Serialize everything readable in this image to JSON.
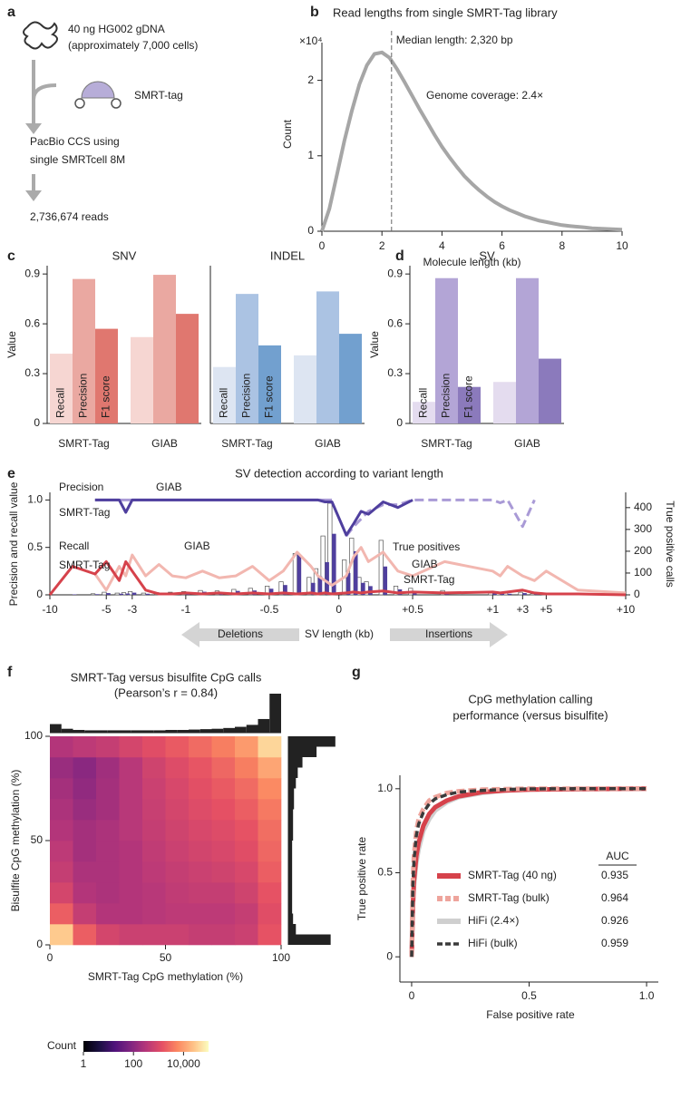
{
  "diagram": {
    "label": "a",
    "input": [
      "40 ng HG002 gDNA",
      "(approximately 7,000 cells)"
    ],
    "reagent": "SMRT-tag",
    "sequencing": [
      "PacBio CCS using",
      "single SMRTcell 8M"
    ],
    "output": "2,736,674 reads"
  },
  "chart_data": [
    {
      "type": "line",
      "label": "b",
      "title": "Read lengths from single SMRT-Tag library",
      "xlabel": "Molecule length (kb)",
      "ylabel": "Count",
      "y_multiplier": "×10⁴",
      "x": [
        0,
        0.25,
        0.5,
        0.75,
        1,
        1.25,
        1.5,
        1.75,
        2,
        2.25,
        2.5,
        2.75,
        3,
        3.25,
        3.5,
        3.75,
        4,
        4.25,
        4.5,
        4.75,
        5,
        5.25,
        5.5,
        5.75,
        6,
        6.25,
        6.5,
        6.75,
        7,
        7.25,
        7.5,
        7.75,
        8,
        8.25,
        8.5,
        8.75,
        9,
        9.25,
        9.5,
        9.75,
        10
      ],
      "values": [
        0,
        0.3,
        0.75,
        1.2,
        1.6,
        1.95,
        2.2,
        2.35,
        2.37,
        2.3,
        2.15,
        1.98,
        1.8,
        1.62,
        1.45,
        1.28,
        1.12,
        0.98,
        0.85,
        0.73,
        0.63,
        0.54,
        0.46,
        0.39,
        0.33,
        0.28,
        0.24,
        0.2,
        0.17,
        0.14,
        0.12,
        0.1,
        0.08,
        0.07,
        0.06,
        0.05,
        0.04,
        0.035,
        0.03,
        0.025,
        0.02
      ],
      "color": "#a6a6a6",
      "xlim": [
        0,
        10
      ],
      "ylim": [
        0,
        2.5
      ],
      "xticks": [
        0,
        2,
        4,
        6,
        8,
        10
      ],
      "yticks": [
        0,
        1,
        2
      ],
      "median": 2.32,
      "annotations": [
        "Median length: 2,320 bp",
        "Genome coverage: 2.4×"
      ]
    },
    {
      "type": "bar",
      "label": "c",
      "title": "SNV",
      "ylabel": "Value",
      "categories": [
        "SMRT-Tag",
        "GIAB"
      ],
      "series": [
        {
          "name": "Recall",
          "color": "#f6d6d2",
          "values": [
            0.42,
            0.52
          ]
        },
        {
          "name": "Precision",
          "color": "#eaa8a1",
          "values": [
            0.87,
            0.895
          ]
        },
        {
          "name": "F1 score",
          "color": "#e0776f",
          "values": [
            0.57,
            0.66
          ]
        }
      ],
      "ylim": [
        0,
        0.95
      ],
      "yticks": [
        0,
        0.3,
        0.6,
        0.9
      ]
    },
    {
      "type": "bar",
      "title": "INDEL",
      "categories": [
        "SMRT-Tag",
        "GIAB"
      ],
      "series": [
        {
          "name": "Recall",
          "color": "#dde5f2",
          "values": [
            0.34,
            0.41
          ]
        },
        {
          "name": "Precision",
          "color": "#abc3e3",
          "values": [
            0.78,
            0.795
          ]
        },
        {
          "name": "F1 score",
          "color": "#72a0cf",
          "values": [
            0.47,
            0.54
          ]
        }
      ],
      "ylim": [
        0,
        0.95
      ]
    },
    {
      "type": "bar",
      "label": "d",
      "title": "SV",
      "ylabel": "Value",
      "categories": [
        "SMRT-Tag",
        "GIAB"
      ],
      "series": [
        {
          "name": "Recall",
          "color": "#e4dcef",
          "values": [
            0.13,
            0.25
          ]
        },
        {
          "name": "Precision",
          "color": "#b3a5d6",
          "values": [
            0.875,
            0.875
          ]
        },
        {
          "name": "F1 score",
          "color": "#8b7abc",
          "values": [
            0.22,
            0.39
          ]
        }
      ],
      "ylim": [
        0,
        0.95
      ],
      "yticks": [
        0,
        0.3,
        0.6,
        0.9
      ]
    },
    {
      "type": "combo",
      "label": "e",
      "title": "SV detection according to variant length",
      "xlabel": "SV length (kb)",
      "ylabel": "Precision and recall value",
      "y2label": "True positive calls",
      "deletions_label": "Deletions",
      "insertions_label": "Insertions",
      "x": [
        -10,
        -8,
        -6,
        -5,
        -4,
        -3.5,
        -3,
        -2.5,
        -2,
        -1.5,
        -1,
        -0.9,
        -0.8,
        -0.7,
        -0.6,
        -0.5,
        -0.4,
        -0.3,
        -0.2,
        -0.15,
        -0.1,
        -0.05,
        0.05,
        0.1,
        0.15,
        0.2,
        0.3,
        0.4,
        0.5,
        0.7,
        1,
        1.5,
        2,
        3,
        4,
        5,
        7,
        10
      ],
      "xlim": [
        -10,
        10
      ],
      "xticks": [
        -10,
        -5,
        -3,
        -1,
        -0.5,
        0,
        {
          "value": 0.5,
          "label": "+0.5"
        },
        {
          "value": 1,
          "label": "+1"
        },
        {
          "value": 3,
          "label": "+3"
        },
        {
          "value": 5,
          "label": "+5"
        },
        {
          "value": 10,
          "label": "+10"
        }
      ],
      "ylim": [
        0,
        1.08
      ],
      "yticks": [
        0,
        0.5,
        {
          "value": 1,
          "label": "1.0"
        }
      ],
      "y2lim": [
        0,
        470
      ],
      "y2ticks": [
        0,
        100,
        200,
        300,
        400
      ],
      "precision": {
        "label": "Precision",
        "series": [
          {
            "name": "GIAB",
            "color": "#a99ad6",
            "dashed_insertions": true,
            "values": [
              null,
              null,
              1,
              1,
              1,
              1,
              1,
              1,
              1,
              1,
              1,
              1,
              1,
              1,
              1,
              1,
              1,
              1,
              1,
              1,
              1,
              1,
              0.62,
              0.72,
              0.8,
              0.88,
              0.95,
              0.95,
              1,
              1,
              1,
              0.97,
              1,
              0.72,
              1,
              null,
              null,
              null
            ]
          },
          {
            "name": "SMRT-Tag",
            "color": "#4f3f9e",
            "values": [
              null,
              null,
              1,
              1,
              1,
              0.87,
              1,
              1,
              1,
              1,
              1,
              1,
              1,
              1,
              1,
              1,
              1,
              1,
              1,
              1,
              0.98,
              0.98,
              0.63,
              0.75,
              0.88,
              0.85,
              0.98,
              0.92,
              1,
              null,
              null,
              null,
              null,
              null,
              null,
              null,
              null,
              null
            ]
          }
        ]
      },
      "recall": {
        "label": "Recall",
        "series": [
          {
            "name": "GIAB",
            "color": "#f2b7b0",
            "values": [
              null,
              null,
              0.22,
              0.05,
              0.3,
              0.2,
              0.42,
              0.2,
              0.32,
              0.2,
              0.18,
              0.25,
              0.18,
              0.2,
              0.3,
              0.15,
              0.25,
              0.45,
              0.3,
              0.2,
              0.15,
              0.1,
              0.2,
              0.4,
              0.5,
              0.35,
              0.45,
              0.25,
              0.2,
              0.35,
              0.25,
              0.2,
              0.3,
              0.2,
              0.15,
              0.25,
              0.05,
              0.02
            ]
          },
          {
            "name": "SMRT-Tag",
            "color": "#d6424b",
            "values": [
              0,
              0.3,
              0.22,
              0.35,
              0.15,
              0.35,
              0.25,
              0.05,
              0.01,
              0.01,
              0.02,
              0.01,
              0.02,
              0.01,
              0.02,
              0.01,
              0.02,
              0.01,
              0.02,
              0.01,
              0.02,
              0.01,
              0.02,
              0.03,
              0.02,
              0.03,
              0.04,
              0.02,
              0.03,
              0.02,
              0.03,
              0.02,
              0.03,
              0.05,
              0.02,
              0.01,
              0.01,
              0
            ]
          }
        ]
      },
      "true_positives": {
        "label": "True positives",
        "series": [
          {
            "name": "GIAB",
            "color": "#ffffff",
            "axis": "y2",
            "values": [
              0,
              0,
              5,
              12,
              8,
              10,
              15,
              8,
              10,
              12,
              15,
              20,
              18,
              25,
              30,
              40,
              60,
              190,
              80,
              120,
              270,
              420,
              160,
              260,
              80,
              60,
              250,
              40,
              30,
              20,
              15,
              10,
              8,
              12,
              5,
              3,
              2,
              0
            ]
          },
          {
            "name": "SMRT-Tag",
            "color": "#4f3f9e",
            "axis": "y2",
            "values": [
              0,
              2,
              3,
              8,
              5,
              6,
              10,
              5,
              6,
              8,
              10,
              14,
              12,
              18,
              20,
              28,
              45,
              185,
              55,
              85,
              150,
              280,
              100,
              200,
              55,
              40,
              130,
              25,
              18,
              12,
              10,
              6,
              5,
              8,
              3,
              2,
              1,
              0
            ]
          }
        ]
      }
    },
    {
      "type": "heatmap",
      "label": "f",
      "title": "SMRT-Tag versus bisulfite CpG calls",
      "subtitle": "(Pearson’s r = 0.84)",
      "xlabel": "SMRT-Tag CpG methylation (%)",
      "ylabel": "Bisulfite CpG methylation (%)",
      "xlim": [
        0,
        100
      ],
      "ylim": [
        0,
        100
      ],
      "xticks": [
        0,
        50,
        100
      ],
      "yticks": [
        0,
        50,
        100
      ],
      "bins": [
        0,
        10,
        20,
        30,
        40,
        50,
        60,
        70,
        80,
        90,
        100
      ],
      "counts": [
        [
          30000,
          2000,
          800,
          600,
          600,
          600,
          500,
          500,
          600,
          1500
        ],
        [
          2000,
          500,
          300,
          300,
          350,
          400,
          400,
          400,
          500,
          1200
        ],
        [
          800,
          300,
          250,
          300,
          350,
          450,
          500,
          500,
          700,
          1500
        ],
        [
          500,
          250,
          250,
          300,
          400,
          500,
          600,
          700,
          900,
          2000
        ],
        [
          400,
          200,
          250,
          300,
          450,
          600,
          750,
          900,
          1200,
          2500
        ],
        [
          300,
          200,
          250,
          350,
          500,
          700,
          900,
          1100,
          1500,
          3000
        ],
        [
          250,
          150,
          200,
          350,
          550,
          800,
          1100,
          1400,
          2000,
          4000
        ],
        [
          200,
          120,
          200,
          350,
          600,
          900,
          1300,
          1800,
          2800,
          6000
        ],
        [
          150,
          100,
          180,
          350,
          700,
          1100,
          1600,
          2500,
          4500,
          12000
        ],
        [
          300,
          400,
          500,
          800,
          1200,
          1800,
          2800,
          4500,
          9000,
          40000
        ]
      ],
      "colorbar": {
        "label": "Count",
        "scale": "log",
        "colormap": "magma",
        "lim": [
          1,
          100000
        ],
        "ticks": [
          1,
          100,
          {
            "value": 10000,
            "label": "10,000"
          }
        ]
      },
      "hist_bins": [
        0,
        5,
        10,
        15,
        20,
        25,
        30,
        35,
        40,
        45,
        50,
        55,
        60,
        65,
        70,
        75,
        80,
        85,
        90,
        95,
        100
      ],
      "top_histogram": [
        22,
        10,
        7,
        6,
        6,
        6,
        6,
        6,
        6,
        6,
        7,
        7,
        8,
        9,
        10,
        12,
        15,
        20,
        35,
        100
      ],
      "top_histogram_lim": [
        0,
        100
      ],
      "right_histogram": [
        45,
        8,
        5,
        4,
        4,
        4,
        4,
        4,
        4,
        4,
        5,
        5,
        5,
        6,
        6,
        8,
        10,
        15,
        30,
        50
      ],
      "right_histogram_lim": [
        0,
        55
      ]
    },
    {
      "type": "line",
      "label": "g",
      "title": [
        "CpG methylation calling",
        "performance (versus bisulfite)"
      ],
      "xlabel": "False positive rate",
      "ylabel": "True positive rate",
      "legend_title": "AUC",
      "x": [
        0,
        0.005,
        0.01,
        0.02,
        0.03,
        0.05,
        0.075,
        0.1,
        0.15,
        0.2,
        0.3,
        0.4,
        0.5,
        0.7,
        1
      ],
      "xlim": [
        -0.05,
        1.05
      ],
      "ylim": [
        -0.15,
        1.08
      ],
      "xticks": [
        0,
        0.5,
        {
          "value": 1,
          "label": "1.0"
        }
      ],
      "yticks": [
        0,
        0.5,
        {
          "value": 1,
          "label": "1.0"
        }
      ],
      "series": [
        {
          "name": "SMRT-Tag (40 ng)",
          "color": "#d6424b",
          "dashed": false,
          "auc": 0.935,
          "values": [
            0,
            0.3,
            0.45,
            0.6,
            0.68,
            0.78,
            0.85,
            0.89,
            0.93,
            0.955,
            0.98,
            0.99,
            0.995,
            0.998,
            1
          ]
        },
        {
          "name": "SMRT-Tag (bulk)",
          "color": "#eea49c",
          "dashed": true,
          "auc": 0.964,
          "values": [
            0,
            0.45,
            0.6,
            0.75,
            0.82,
            0.88,
            0.93,
            0.95,
            0.975,
            0.985,
            0.995,
            0.998,
            1,
            1,
            1
          ]
        },
        {
          "name": "HiFi (2.4×)",
          "color": "#cfcfcf",
          "dashed": false,
          "auc": 0.926,
          "values": [
            0,
            0.28,
            0.42,
            0.56,
            0.64,
            0.75,
            0.82,
            0.87,
            0.92,
            0.95,
            0.975,
            0.99,
            0.995,
            0.998,
            1
          ]
        },
        {
          "name": "HiFi (bulk)",
          "color": "#3a3a3a",
          "dashed": true,
          "auc": 0.959,
          "values": [
            0,
            0.42,
            0.57,
            0.72,
            0.79,
            0.86,
            0.91,
            0.94,
            0.965,
            0.98,
            0.99,
            0.996,
            0.999,
            1,
            1
          ]
        }
      ]
    }
  ]
}
